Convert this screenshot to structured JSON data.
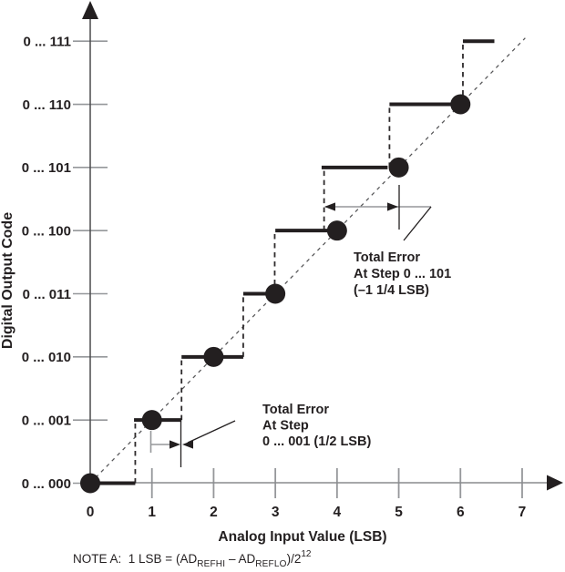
{
  "colors": {
    "ink": "#231f20",
    "x_axis": "#8a8b8e",
    "y_axis": "#4a4a4c",
    "tick": "#95979a",
    "measure": "#95979a",
    "transition_dash": "#2e2b2c",
    "ideal_dash": "#555557"
  },
  "chart_data": {
    "type": "line",
    "subtype": "adc-transfer-staircase-with-total-error",
    "title": "",
    "xlabel": "Analog Input Value (LSB)",
    "ylabel": "Digital Output Code",
    "xlim": [
      0,
      7.5
    ],
    "grid": false,
    "x_ticks": [
      0,
      1,
      2,
      3,
      4,
      5,
      6,
      7
    ],
    "x_tick_labels": [
      "0",
      "1",
      "2",
      "3",
      "4",
      "5",
      "6",
      "7"
    ],
    "y_codes": [
      "0 ... 000",
      "0 ... 001",
      "0 ... 010",
      "0 ... 011",
      "0 ... 100",
      "0 ... 101",
      "0 ... 110",
      "0 ... 111"
    ],
    "ideal_line": {
      "from_x": 0,
      "from_code": 0,
      "to_x": 7.05,
      "to_code": 7.05
    },
    "steps": [
      {
        "code": 0,
        "from": 0.0,
        "to": 0.73
      },
      {
        "code": 1,
        "from": 0.71,
        "to": 1.48
      },
      {
        "code": 2,
        "from": 1.48,
        "to": 2.48
      },
      {
        "code": 3,
        "from": 2.48,
        "to": 2.86
      },
      {
        "code": 4,
        "from": 3.0,
        "to": 3.86
      },
      {
        "code": 5,
        "from": 3.75,
        "to": 4.82
      },
      {
        "code": 6,
        "from": 4.85,
        "to": 6.0
      },
      {
        "code": 7,
        "from": 6.04,
        "to": 6.55
      }
    ],
    "transitions": [
      {
        "x": 0.73,
        "code_from": 0,
        "code_to": 1
      },
      {
        "x": 1.48,
        "code_from": 1,
        "code_to": 2
      },
      {
        "x": 2.48,
        "code_from": 2,
        "code_to": 3
      },
      {
        "x": 2.99,
        "code_from": 3,
        "code_to": 4
      },
      {
        "x": 3.79,
        "code_from": 4,
        "code_to": 5
      },
      {
        "x": 4.85,
        "code_from": 5,
        "code_to": 6
      },
      {
        "x": 6.04,
        "code_from": 6,
        "code_to": 7
      }
    ],
    "dots": [
      {
        "x": 0,
        "code": 0
      },
      {
        "x": 1,
        "code": 1
      },
      {
        "x": 2,
        "code": 2
      },
      {
        "x": 3,
        "code": 3
      },
      {
        "x": 4,
        "code": 4
      },
      {
        "x": 5,
        "code": 5
      },
      {
        "x": 6,
        "code": 6
      }
    ],
    "annotations": [
      {
        "id": "total-error-step-101",
        "lines": [
          "Total Error",
          "At Step 0 ... 101",
          "(–1 1/4 LSB)"
        ],
        "error_lsb": -1.25,
        "measured_from_x": 3.75,
        "measured_to_x": 5.0,
        "text": {
          "x": 388,
          "ys": [
            287,
            305,
            323
          ]
        },
        "gray_lines": [
          [
            357,
            227,
            473,
            227
          ]
        ],
        "black_lines": [
          [
            438,
            203,
            438,
            252
          ],
          [
            473,
            227,
            443,
            264
          ]
        ],
        "arrowheads": [
          {
            "tip": [
              356,
              227
            ],
            "dir": "left"
          },
          {
            "tip": [
              437,
              227
            ],
            "dir": "right"
          }
        ]
      },
      {
        "id": "total-error-step-001",
        "lines": [
          "Total Error",
          "At Step",
          "0 ... 001 (1/2 LSB)"
        ],
        "error_lsb": 0.5,
        "measured_from_x": 1.0,
        "measured_to_x": 1.5,
        "text": {
          "x": 288,
          "ys": [
            454,
            471.5,
            489
          ]
        },
        "gray_lines": [
          [
            165.5,
            473,
            165.5,
            497
          ],
          [
            165.5,
            488,
            187,
            488
          ]
        ],
        "black_lines": [
          [
            198.5,
            463,
            198.5,
            513
          ],
          [
            206,
            486,
            258,
            462
          ]
        ],
        "arrowheads": [
          {
            "tip": [
              198,
              488
            ],
            "dir": "right"
          },
          {
            "tip": [
              200,
              488
            ],
            "dir": "left"
          }
        ]
      }
    ]
  },
  "note": {
    "label": "NOTE A:",
    "body_1": "1 LSB = (AD",
    "sub_1": "REFHI",
    "body_2": " – AD",
    "sub_2": "REFLO",
    "body_3": ")/2",
    "sup": "12"
  }
}
